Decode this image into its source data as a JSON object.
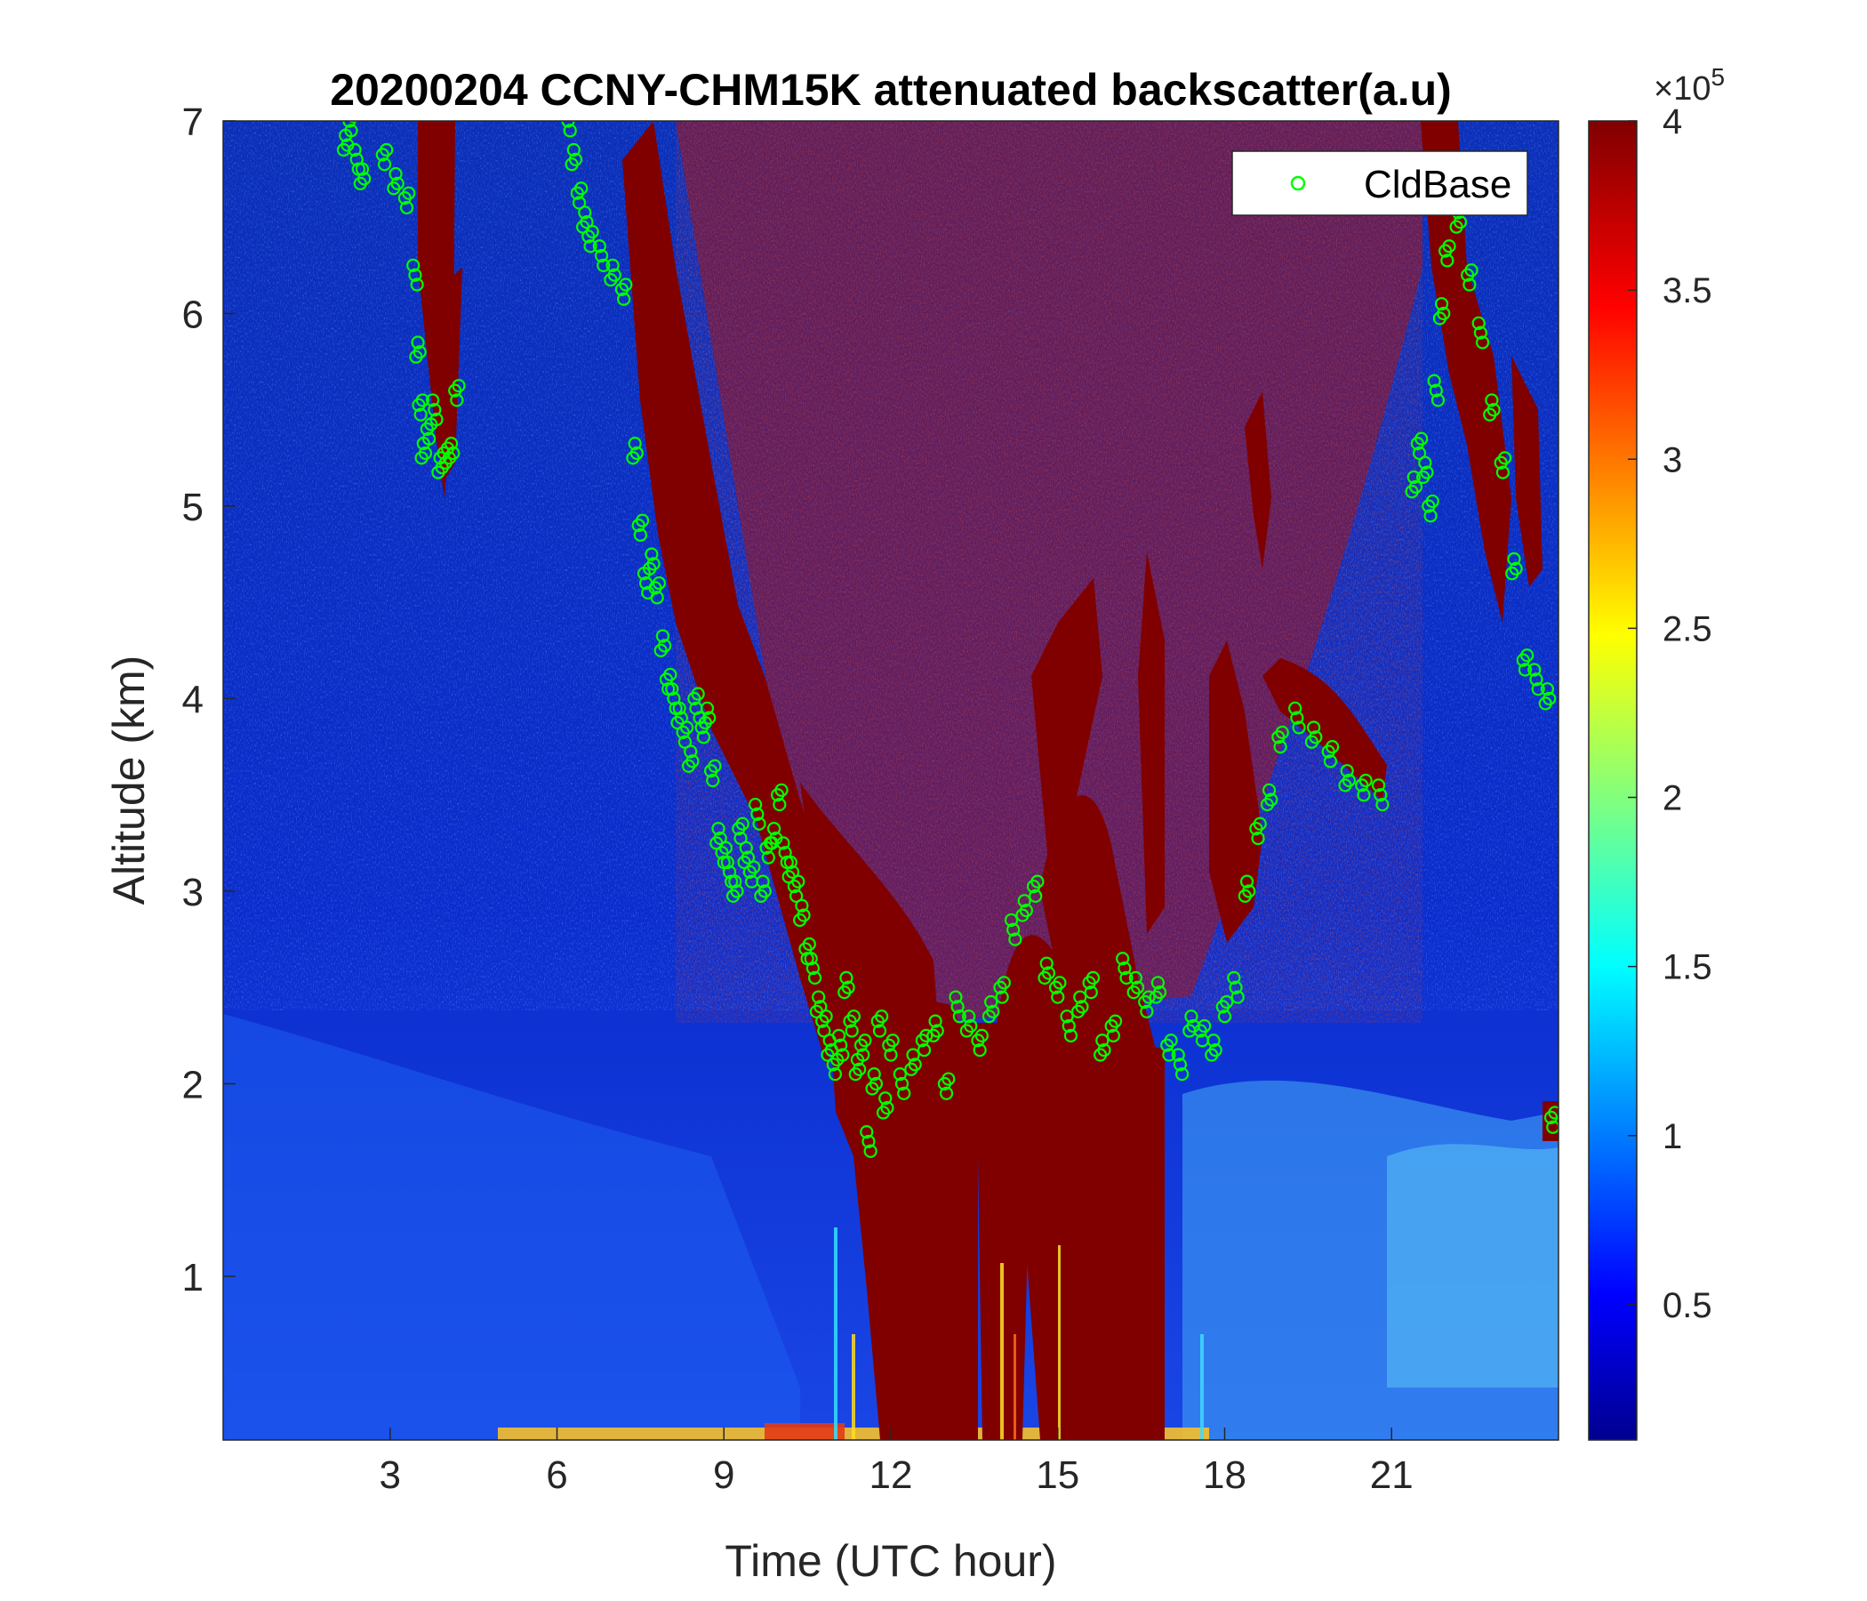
{
  "chart_data": {
    "type": "heatmap",
    "title": "20200204 CCNY-CHM15K attenuated backscatter(a.u)",
    "xlabel": "Time (UTC hour)",
    "ylabel": "Altitude (km)",
    "xlim": [
      0,
      24
    ],
    "ylim": [
      0.15,
      7
    ],
    "xticks": [
      3,
      6,
      9,
      12,
      15,
      18,
      21
    ],
    "xtick_labels": [
      "3",
      "6",
      "9",
      "12",
      "15",
      "18",
      "21"
    ],
    "yticks": [
      1,
      2,
      3,
      4,
      5,
      6,
      7
    ],
    "ytick_labels": [
      "1",
      "2",
      "3",
      "4",
      "5",
      "6",
      "7"
    ],
    "colorbar": {
      "colormap": "jet",
      "range": [
        0.1,
        4
      ],
      "ticks": [
        0.5,
        1,
        1.5,
        2,
        2.5,
        3,
        3.5,
        4
      ],
      "tick_labels": [
        "0.5",
        "1",
        "1.5",
        "2",
        "2.5",
        "3",
        "3.5",
        "4"
      ],
      "exponent_label": "×10",
      "exponent_power": "5"
    },
    "legend": {
      "position": "top-right",
      "entries": [
        "CldBase"
      ]
    },
    "series": [
      {
        "name": "CldBase",
        "type": "scatter",
        "marker": "open-circle",
        "color": "#00ff00",
        "x": [
          2.2,
          2.3,
          2.4,
          2.5,
          2.9,
          3.1,
          3.3,
          3.45,
          3.5,
          3.55,
          3.6,
          3.7,
          3.8,
          3.9,
          4.0,
          4.1,
          4.2,
          6.2,
          6.3,
          6.4,
          6.5,
          6.6,
          6.8,
          7.0,
          7.2,
          7.4,
          7.5,
          7.6,
          7.7,
          7.8,
          7.9,
          8.0,
          8.1,
          8.2,
          8.3,
          8.4,
          8.5,
          8.6,
          8.7,
          8.8,
          8.9,
          9.0,
          9.1,
          9.2,
          9.3,
          9.4,
          9.5,
          9.6,
          9.7,
          9.8,
          9.9,
          10.0,
          10.1,
          10.2,
          10.3,
          10.4,
          10.5,
          10.6,
          10.7,
          10.8,
          10.9,
          11.0,
          11.1,
          11.2,
          11.3,
          11.4,
          11.5,
          11.6,
          11.7,
          11.8,
          11.9,
          12.0,
          12.2,
          12.4,
          12.6,
          12.8,
          13.0,
          13.2,
          13.4,
          13.6,
          13.8,
          14.0,
          14.2,
          14.4,
          14.6,
          14.8,
          15.0,
          15.2,
          15.4,
          15.6,
          15.8,
          16.0,
          16.2,
          16.4,
          16.6,
          16.8,
          17.0,
          17.2,
          17.4,
          17.6,
          17.8,
          18.0,
          18.2,
          18.4,
          18.6,
          18.8,
          19.0,
          19.3,
          19.6,
          19.9,
          20.2,
          20.5,
          20.8,
          21.4,
          21.5,
          21.6,
          21.7,
          21.8,
          21.9,
          22.0,
          22.2,
          22.4,
          22.6,
          22.8,
          23.0,
          23.2,
          23.4,
          23.6,
          23.8,
          23.9
        ],
        "y": [
          6.9,
          7.0,
          6.8,
          6.7,
          6.8,
          6.7,
          6.6,
          6.2,
          5.8,
          5.5,
          5.3,
          5.4,
          5.5,
          5.2,
          5.25,
          5.3,
          5.6,
          7.0,
          6.8,
          6.6,
          6.5,
          6.4,
          6.3,
          6.2,
          6.1,
          5.3,
          4.9,
          4.6,
          4.7,
          4.55,
          4.3,
          4.1,
          4.0,
          3.9,
          3.8,
          3.7,
          4.0,
          3.85,
          3.9,
          3.6,
          3.3,
          3.2,
          3.1,
          3.0,
          3.3,
          3.2,
          3.1,
          3.4,
          3.0,
          3.2,
          3.3,
          3.5,
          3.2,
          3.1,
          3.0,
          2.9,
          2.7,
          2.6,
          2.4,
          2.3,
          2.2,
          2.1,
          2.2,
          2.5,
          2.3,
          2.1,
          2.2,
          1.7,
          2.0,
          2.3,
          1.9,
          2.2,
          2.0,
          2.1,
          2.2,
          2.3,
          2.0,
          2.4,
          2.3,
          2.2,
          2.4,
          2.5,
          2.8,
          2.9,
          3.0,
          2.6,
          2.5,
          2.3,
          2.4,
          2.5,
          2.2,
          2.3,
          2.6,
          2.5,
          2.4,
          2.5,
          2.2,
          2.1,
          2.3,
          2.25,
          2.2,
          2.4,
          2.5,
          3.0,
          3.3,
          3.5,
          3.8,
          3.9,
          3.8,
          3.7,
          3.6,
          3.55,
          3.5,
          5.1,
          5.3,
          5.2,
          5.0,
          5.6,
          6.0,
          6.3,
          6.5,
          6.2,
          5.9,
          5.5,
          5.2,
          4.7,
          4.2,
          4.1,
          4.0,
          1.8
        ]
      }
    ]
  }
}
